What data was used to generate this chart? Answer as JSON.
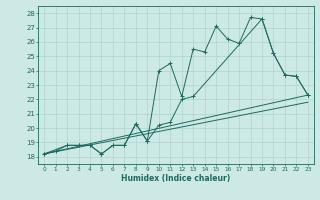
{
  "xlabel": "Humidex (Indice chaleur)",
  "xlim": [
    -0.5,
    23.5
  ],
  "ylim": [
    17.5,
    28.5
  ],
  "yticks": [
    18,
    19,
    20,
    21,
    22,
    23,
    24,
    25,
    26,
    27,
    28
  ],
  "xticks": [
    0,
    1,
    2,
    3,
    4,
    5,
    6,
    7,
    8,
    9,
    10,
    11,
    12,
    13,
    14,
    15,
    16,
    17,
    18,
    19,
    20,
    21,
    22,
    23
  ],
  "bg_color": "#cce9e5",
  "grid_color": "#aed4cf",
  "line_color": "#1a6b5e",
  "lines": [
    {
      "x": [
        0,
        1,
        2,
        3,
        4,
        5,
        6,
        7,
        8,
        9,
        10,
        11,
        12,
        13,
        14,
        15,
        16,
        17,
        18,
        19,
        20,
        21,
        22,
        23
      ],
      "y": [
        18.2,
        18.4,
        18.8,
        18.8,
        18.8,
        18.2,
        18.8,
        18.8,
        20.3,
        19.1,
        24.0,
        24.5,
        22.2,
        25.5,
        25.3,
        27.1,
        26.2,
        25.9,
        27.7,
        27.6,
        25.2,
        23.7,
        23.6,
        22.3
      ],
      "marker": true
    },
    {
      "x": [
        0,
        2,
        3,
        4,
        5,
        6,
        7,
        8,
        9,
        10,
        11,
        12,
        13,
        19,
        20,
        21,
        22,
        23
      ],
      "y": [
        18.2,
        18.8,
        18.8,
        18.8,
        18.2,
        18.8,
        18.8,
        20.3,
        19.1,
        20.2,
        20.4,
        22.0,
        22.2,
        27.6,
        25.2,
        23.7,
        23.6,
        22.3
      ],
      "marker": true
    },
    {
      "x": [
        0,
        23
      ],
      "y": [
        18.2,
        22.3
      ],
      "marker": false
    },
    {
      "x": [
        0,
        23
      ],
      "y": [
        18.2,
        21.8
      ],
      "marker": false
    }
  ]
}
